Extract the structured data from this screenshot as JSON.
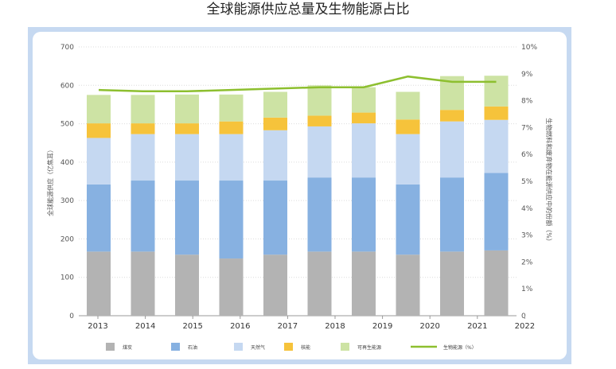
{
  "chart_data": {
    "type": "bar",
    "stacked": true,
    "title": "全球能源供应总量及生物能源占比",
    "ylabel": "全球能源供应（亿焦耳）",
    "y2label": "生物燃料和废弃物在能源供应中的份额（%）",
    "ylim": [
      0,
      700
    ],
    "y2lim": [
      0,
      10
    ],
    "yticks": [
      "0",
      "100",
      "200",
      "300",
      "400",
      "500",
      "600",
      "700"
    ],
    "y2ticks": [
      "0",
      "1%",
      "2%",
      "3%",
      "4%",
      "5%",
      "6%",
      "7%",
      "8%",
      "9%",
      "10%"
    ],
    "x_ticks": [
      "2013",
      "2014",
      "2015",
      "2016",
      "2017",
      "2018",
      "2019",
      "2020",
      "2021",
      "2022"
    ],
    "categories": [
      "2013",
      "2014",
      "2015",
      "2016",
      "2017",
      "2018",
      "2019",
      "2020",
      "2021",
      "2022"
    ],
    "grid": true,
    "legend_position": "bottom",
    "series": [
      {
        "name": "煤炭",
        "color": "#b3b3b3",
        "values": [
          167,
          167,
          159,
          149,
          159,
          167,
          167,
          159,
          167,
          170
        ]
      },
      {
        "name": "石油",
        "color": "#87b1e1",
        "values": [
          175,
          185,
          193,
          203,
          193,
          193,
          193,
          183,
          193,
          202
        ]
      },
      {
        "name": "天然气",
        "color": "#c5d8f1",
        "values": [
          121,
          121,
          121,
          121,
          131,
          133,
          141,
          131,
          146,
          138
        ]
      },
      {
        "name": "核能",
        "color": "#f6c33b",
        "values": [
          38,
          28,
          28,
          33,
          33,
          28,
          28,
          38,
          30,
          35
        ]
      },
      {
        "name": "可再生能源",
        "color": "#cde3a4",
        "values": [
          74,
          74,
          75,
          70,
          67,
          79,
          66,
          72,
          88,
          80
        ]
      }
    ],
    "line_series": {
      "name": "生物能源（%）",
      "color": "#8dbf2f",
      "axis": "right",
      "values": [
        8.4,
        8.35,
        8.35,
        8.4,
        8.45,
        8.5,
        8.5,
        8.9,
        8.7,
        8.7
      ]
    }
  }
}
